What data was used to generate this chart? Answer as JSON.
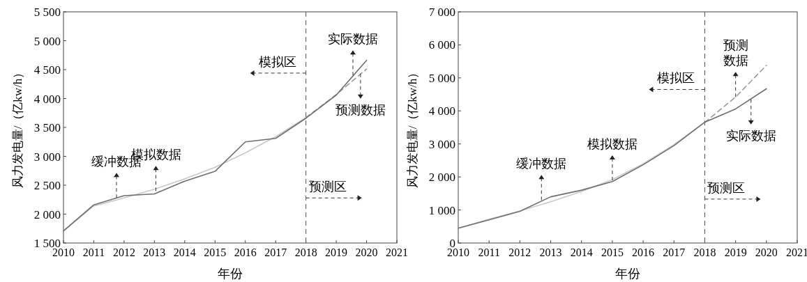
{
  "chart_data": [
    {
      "type": "line",
      "xlabel": "年份",
      "ylabel": "风力发电量/（亿kw/h）",
      "xlim": [
        2010,
        2021
      ],
      "xticks": [
        2010,
        2011,
        2012,
        2013,
        2014,
        2015,
        2016,
        2017,
        2018,
        2019,
        2020,
        2021
      ],
      "ylim": [
        1500,
        5500
      ],
      "yticks": [
        {
          "value": 1500,
          "label": "1 500"
        },
        {
          "value": 2000,
          "label": "2 000"
        },
        {
          "value": 2500,
          "label": "2 500"
        },
        {
          "value": 3000,
          "label": "3 000"
        },
        {
          "value": 3500,
          "label": "3 500"
        },
        {
          "value": 4000,
          "label": "4 000"
        },
        {
          "value": 4500,
          "label": "4 500"
        },
        {
          "value": 5000,
          "label": "5 000"
        },
        {
          "value": 5500,
          "label": "5 500"
        }
      ],
      "grid": false,
      "series": [
        {
          "color": "#c8c8c8",
          "x": [
            2010,
            2011,
            2012,
            2013,
            2014,
            2015,
            2016,
            2017,
            2018
          ],
          "values": [
            1710,
            2140,
            2280,
            2430,
            2610,
            2810,
            3060,
            3340,
            3670
          ]
        },
        {
          "color": "#999999",
          "line_style": "dashed",
          "x": [
            2018,
            2019,
            2020
          ],
          "values": [
            3670,
            4070,
            4510
          ]
        },
        {
          "color": "#6e6e6e",
          "x": [
            2010,
            2011,
            2012,
            2013,
            2014,
            2015,
            2016,
            2017,
            2018,
            2019,
            2020
          ],
          "values": [
            1710,
            2160,
            2320,
            2350,
            2570,
            2740,
            3250,
            3310,
            3660,
            4060,
            4660
          ]
        }
      ],
      "ref_lines": [
        {
          "axis": "x",
          "value": 2018,
          "line_style": "dashed",
          "color": "#555555"
        }
      ],
      "annotations": [
        {
          "text": "缓冲数据",
          "x": 2011.75,
          "y": 2280
        },
        {
          "text": "模拟数据",
          "x": 2013.05,
          "y": 2400
        },
        {
          "text": "实际数据",
          "x": 2019.55,
          "y": 4400
        },
        {
          "text": "预测数据",
          "x": 2019.8,
          "y": 4430
        },
        {
          "text": "模拟区",
          "x": 2018,
          "y": 4440
        },
        {
          "text": "预测区",
          "x": 2018,
          "y": 2280
        }
      ]
    },
    {
      "type": "line",
      "xlabel": "年份",
      "ylabel": "风力发电量/（亿kw/h）",
      "xlim": [
        2010,
        2021
      ],
      "xticks": [
        2010,
        2011,
        2012,
        2013,
        2014,
        2015,
        2016,
        2017,
        2018,
        2019,
        2020,
        2021
      ],
      "ylim": [
        0,
        7000
      ],
      "yticks": [
        0,
        {
          "value": 1000,
          "label": "1 000"
        },
        {
          "value": 2000,
          "label": "2 000"
        },
        {
          "value": 3000,
          "label": "3 000"
        },
        {
          "value": 4000,
          "label": "4 000"
        },
        {
          "value": 5000,
          "label": "5 000"
        },
        {
          "value": 6000,
          "label": "6 000"
        },
        {
          "value": 7000,
          "label": "7 000"
        }
      ],
      "grid": false,
      "series": [
        {
          "color": "#c8c8c8",
          "x": [
            2010,
            2011,
            2012,
            2013,
            2014,
            2015,
            2016,
            2017,
            2018
          ],
          "values": [
            450,
            720,
            970,
            1250,
            1560,
            1920,
            2400,
            2980,
            3650
          ]
        },
        {
          "color": "#999999",
          "line_style": "dashed",
          "x": [
            2018,
            2019,
            2020
          ],
          "values": [
            3650,
            4420,
            5380
          ]
        },
        {
          "color": "#6e6e6e",
          "x": [
            2010,
            2011,
            2012,
            2013,
            2014,
            2015,
            2016,
            2017,
            2018,
            2019,
            2020
          ],
          "values": [
            450,
            700,
            960,
            1400,
            1600,
            1860,
            2370,
            2950,
            3660,
            4060,
            4670
          ]
        }
      ],
      "ref_lines": [
        {
          "axis": "x",
          "value": 2018,
          "line_style": "dashed",
          "color": "#555555"
        }
      ],
      "annotations": [
        {
          "text": "缓冲数据",
          "x": 2012.7,
          "y": 1300
        },
        {
          "text": "模拟数据",
          "x": 2015,
          "y": 1900
        },
        {
          "text": "预测数据",
          "x": 2019,
          "y": 4420
        },
        {
          "text": "实际数据",
          "x": 2019.5,
          "y": 4350
        },
        {
          "text": "模拟区",
          "x": 2018,
          "y": 4650
        },
        {
          "text": "预测区",
          "x": 2018,
          "y": 1330
        }
      ]
    }
  ]
}
